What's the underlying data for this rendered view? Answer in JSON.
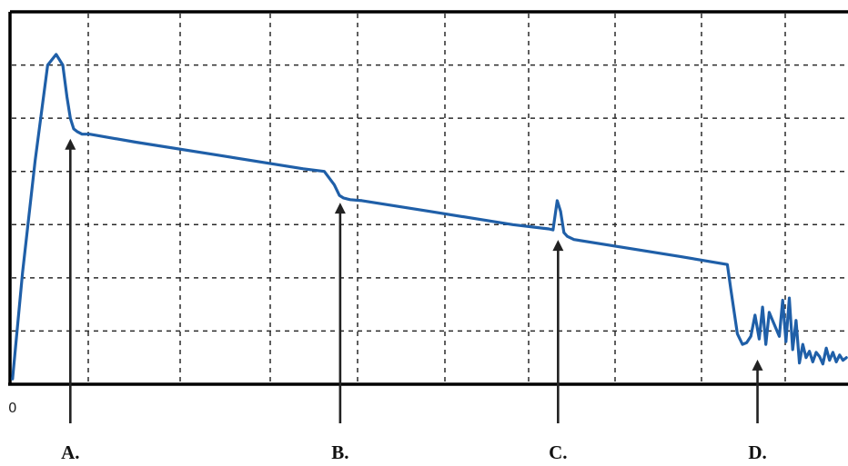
{
  "chart_data": {
    "type": "line",
    "title": "",
    "xlabel": "",
    "ylabel": "",
    "x_origin_label": "0",
    "xlim": [
      0,
      100
    ],
    "ylim": [
      0,
      7
    ],
    "grid": true,
    "grid_x_count": 9,
    "grid_y_count": 6,
    "trace_color": "#1f5fa8",
    "series": [
      {
        "values_x": [
          0.3,
          1.5,
          3,
          4.5,
          5.5,
          6.3,
          6.8,
          7.2,
          7.6,
          8,
          8.6,
          9.5,
          15,
          25,
          35,
          37.5,
          38.7,
          39.3,
          39.8,
          40.6,
          42,
          50,
          60,
          64.3,
          64.8,
          65.3,
          65.7,
          66.1,
          66.5,
          67.3,
          80,
          85.6,
          86,
          86.8,
          87.4,
          87.9,
          88.4,
          88.9,
          89.4,
          89.8,
          90.2,
          90.6,
          91.0,
          91.4,
          91.8,
          92.2,
          92.6,
          93.0,
          93.4,
          93.8,
          94.2,
          94.6,
          95.0,
          95.4,
          95.8,
          96.2,
          96.6,
          97.0,
          97.4,
          97.8,
          98.2,
          98.6,
          99.0,
          99.4,
          99.8
        ],
        "values_y": [
          0.1,
          2.1,
          4.2,
          6.0,
          6.2,
          6.0,
          5.4,
          5.0,
          4.8,
          4.75,
          4.7,
          4.7,
          4.55,
          4.3,
          4.05,
          4.0,
          3.75,
          3.55,
          3.5,
          3.47,
          3.45,
          3.25,
          3.0,
          2.92,
          2.9,
          3.45,
          3.25,
          2.85,
          2.78,
          2.72,
          2.4,
          2.25,
          1.8,
          0.95,
          0.75,
          0.78,
          0.9,
          1.3,
          0.85,
          1.45,
          0.75,
          1.35,
          1.2,
          1.05,
          0.9,
          1.58,
          0.8,
          1.62,
          0.65,
          1.2,
          0.4,
          0.75,
          0.5,
          0.62,
          0.42,
          0.6,
          0.52,
          0.38,
          0.68,
          0.45,
          0.6,
          0.42,
          0.55,
          0.45,
          0.5
        ]
      }
    ],
    "annotations": [
      {
        "label": "A.",
        "x": 7.2,
        "y": 4.75
      },
      {
        "label": "B.",
        "x": 39.4,
        "y": 3.55
      },
      {
        "label": "C.",
        "x": 65.4,
        "y": 2.85
      },
      {
        "label": "D.",
        "x": 89.2,
        "y": 0.6
      }
    ]
  }
}
